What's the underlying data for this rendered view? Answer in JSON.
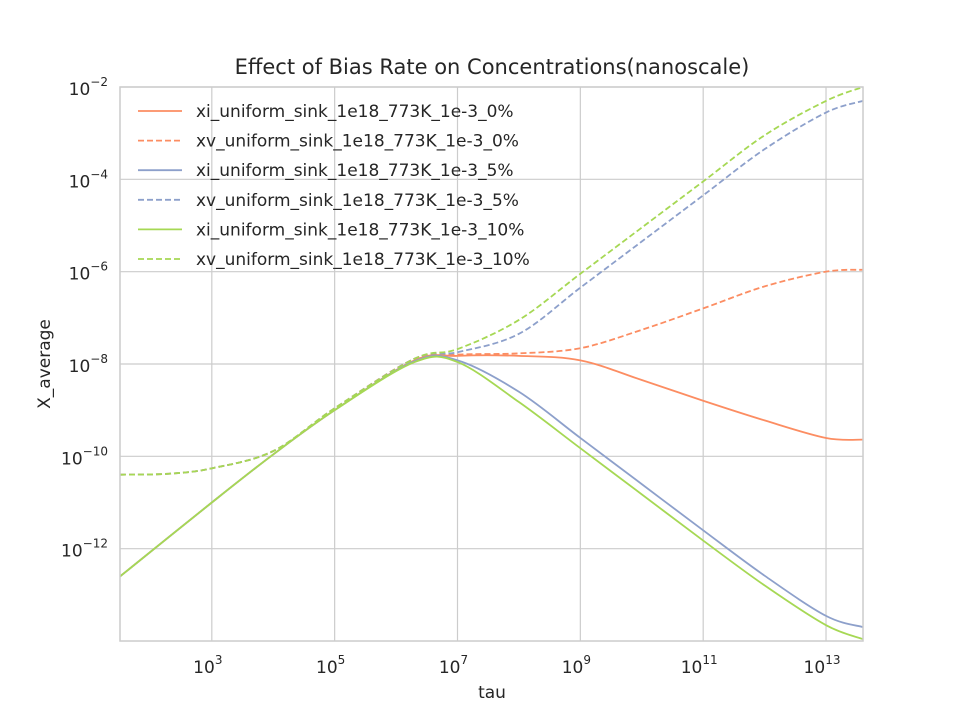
{
  "chart_data": {
    "type": "line",
    "title": "Effect of Bias Rate on Concentrations(nanoscale)",
    "xlabel": "tau",
    "ylabel": "X_average",
    "x_scale": "log",
    "y_scale": "log",
    "xlim": [
      32,
      40000000000000
    ],
    "ylim": [
      1e-14,
      0.01
    ],
    "x_ticks": [
      {
        "value": 1000,
        "base": "10",
        "exp": "3"
      },
      {
        "value": 100000,
        "base": "10",
        "exp": "5"
      },
      {
        "value": 10000000,
        "base": "10",
        "exp": "7"
      },
      {
        "value": 1000000000,
        "base": "10",
        "exp": "9"
      },
      {
        "value": 100000000000,
        "base": "10",
        "exp": "11"
      },
      {
        "value": 10000000000000,
        "base": "10",
        "exp": "13"
      }
    ],
    "y_ticks": [
      {
        "value": 1e-12,
        "base": "10",
        "exp": "−12"
      },
      {
        "value": 1e-10,
        "base": "10",
        "exp": "−10"
      },
      {
        "value": 1e-08,
        "base": "10",
        "exp": "−8"
      },
      {
        "value": 1e-06,
        "base": "10",
        "exp": "−6"
      },
      {
        "value": 0.0001,
        "base": "10",
        "exp": "−4"
      },
      {
        "value": 0.01,
        "base": "10",
        "exp": "−2"
      }
    ],
    "grid": true,
    "legend_position": "top-left",
    "series": [
      {
        "name": "xi_uniform_sink_1e18_773K_1e-3_0%",
        "color": "#fc8d62",
        "dash": "solid",
        "x": [
          32,
          1000,
          10000,
          100000,
          2000000,
          10000000,
          100000000,
          1000000000,
          10000000000,
          100000000000,
          1000000000000,
          10000000000000,
          40000000000000
        ],
        "y": [
          2.5e-13,
          1e-11,
          1.1e-10,
          1e-09,
          1.2e-08,
          1.5e-08,
          1.5e-08,
          1.2e-08,
          4.5e-09,
          1.6e-09,
          6e-10,
          2.5e-10,
          2.3e-10
        ]
      },
      {
        "name": "xv_uniform_sink_1e18_773K_1e-3_0%",
        "color": "#fc8d62",
        "dash": "dashed",
        "x": [
          32,
          200,
          1000,
          10000,
          100000,
          2000000,
          10000000,
          100000000,
          1000000000,
          10000000000,
          100000000000,
          1000000000000,
          10000000000000,
          40000000000000
        ],
        "y": [
          4e-11,
          4.2e-11,
          5.5e-11,
          1.3e-10,
          1.1e-09,
          1.3e-08,
          1.6e-08,
          1.7e-08,
          2.2e-08,
          5.5e-08,
          1.6e-07,
          4.8e-07,
          1e-06,
          1.1e-06
        ]
      },
      {
        "name": "xi_uniform_sink_1e18_773K_1e-3_5%",
        "color": "#8da0cb",
        "dash": "solid",
        "x": [
          32,
          1000,
          10000,
          100000,
          2000000,
          10000000,
          100000000,
          1000000000,
          10000000000,
          100000000000,
          1000000000000,
          10000000000000,
          40000000000000
        ],
        "y": [
          2.5e-13,
          1e-11,
          1.1e-10,
          1e-09,
          1.15e-08,
          1.2e-08,
          2.5e-09,
          2.5e-10,
          2.5e-11,
          2.5e-12,
          2.6e-13,
          3.5e-14,
          2e-14
        ]
      },
      {
        "name": "xv_uniform_sink_1e18_773K_1e-3_5%",
        "color": "#8da0cb",
        "dash": "dashed",
        "x": [
          32,
          200,
          1000,
          10000,
          100000,
          2000000,
          10000000,
          100000000,
          1000000000,
          10000000000,
          100000000000,
          1000000000000,
          10000000000000,
          40000000000000
        ],
        "y": [
          4e-11,
          4.2e-11,
          5.5e-11,
          1.3e-10,
          1.1e-09,
          1.3e-08,
          1.8e-08,
          4.5e-08,
          4.5e-07,
          4.5e-06,
          4.5e-05,
          0.00045,
          0.0028,
          0.005
        ]
      },
      {
        "name": "xi_uniform_sink_1e18_773K_1e-3_10%",
        "color": "#a6d854",
        "dash": "solid",
        "x": [
          32,
          1000,
          10000,
          100000,
          2000000,
          10000000,
          100000000,
          1000000000,
          10000000000,
          100000000000,
          1000000000000,
          10000000000000,
          40000000000000
        ],
        "y": [
          2.5e-13,
          1e-11,
          1.1e-10,
          1e-09,
          1.1e-08,
          1.1e-08,
          1.5e-09,
          1.5e-10,
          1.5e-11,
          1.5e-12,
          1.6e-13,
          2.2e-14,
          1.1e-14
        ]
      },
      {
        "name": "xv_uniform_sink_1e18_773K_1e-3_10%",
        "color": "#a6d854",
        "dash": "dashed",
        "x": [
          32,
          200,
          1000,
          10000,
          100000,
          2000000,
          10000000,
          100000000,
          1000000000,
          10000000000,
          100000000000,
          1000000000000,
          10000000000000,
          40000000000000
        ],
        "y": [
          4e-11,
          4.2e-11,
          5.5e-11,
          1.3e-10,
          1.1e-09,
          1.3e-08,
          2.1e-08,
          9e-08,
          9e-07,
          9e-06,
          9e-05,
          0.0009,
          0.005,
          0.01
        ]
      }
    ]
  }
}
